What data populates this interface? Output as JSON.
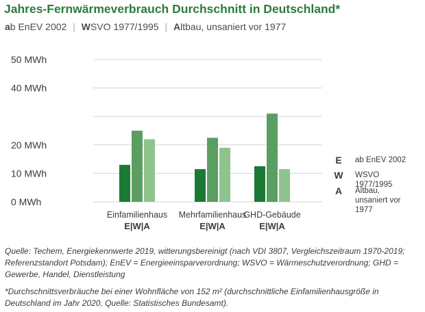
{
  "heading": {
    "title": "Jahres-Fernwärmeverbrauch Durchschnitt in Deutschland*",
    "subtitle": [
      {
        "initial": "a",
        "rest": "b EnEV 2002"
      },
      {
        "initial": "W",
        "rest": "SVO 1977/1995"
      },
      {
        "initial": "A",
        "rest": "ltbau, unsaniert vor 1977"
      }
    ]
  },
  "chart_data": {
    "type": "bar",
    "categories": [
      "Einfamilienhaus",
      "Mehrfamilienhaus",
      "GHD-Gebäude"
    ],
    "category_sublabel": "E|W|A",
    "series": [
      {
        "key": "E",
        "name": "ab EnEV 2002",
        "color": "#1a7a34",
        "values": [
          13,
          11.5,
          12.5
        ]
      },
      {
        "key": "W",
        "name": "WSVO 1977/1995",
        "color": "#5a9e62",
        "values": [
          25,
          22.5,
          31
        ]
      },
      {
        "key": "A",
        "name": "Altbau, unsaniert vor 1977",
        "color": "#8ec48c",
        "values": [
          22,
          19,
          11.5
        ]
      }
    ],
    "y_ticks": [
      "0 MWh",
      "10 MWh",
      "20 MWh",
      "40 MWh",
      "50 MWh"
    ],
    "y_tick_values": [
      0,
      10,
      20,
      40,
      50
    ],
    "ylim": [
      0,
      50
    ],
    "grid": true,
    "legend_placement": "right"
  },
  "legend": [
    {
      "letter": "E",
      "label": "ab EnEV 2002"
    },
    {
      "letter": "W",
      "label": "WSVO 1977/1995"
    },
    {
      "letter": "A",
      "label": "Altbau, unsaniert vor 1977"
    }
  ],
  "notes": {
    "source": "Quelle: Techem, Energiekennwerte 2019, witterungsbereinigt (nach VDI 3807, Vergleichszeitraum 1970-2019; Referenzstandort Potsdam); EnEV = Energieeinsparverordnung; WSVO = Wärmeschutzverordnung; GHD = Gewerbe, Handel, Dienstleistung",
    "footnote": "*Durchschnittsverbräuche bei einer Wohnfläche von 152 m² (durchschnittliche Einfamilienhausgröße in Deutschland im Jahr 2020, Quelle: Statistisches Bundesamt)."
  }
}
